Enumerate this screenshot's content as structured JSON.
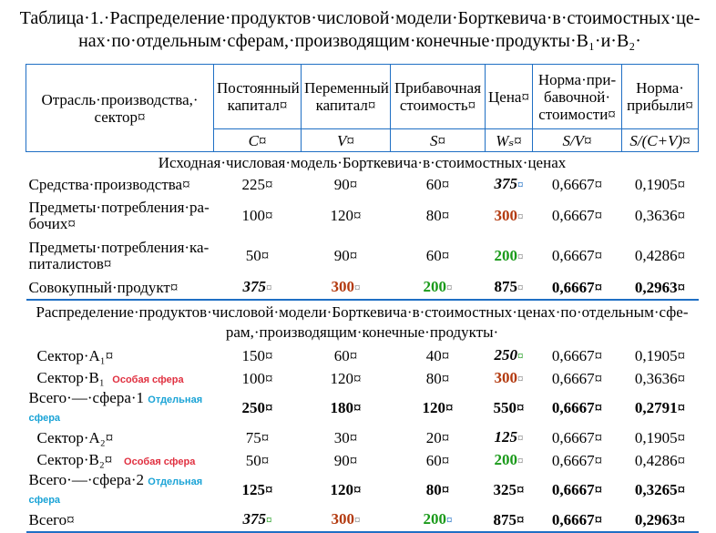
{
  "caption": {
    "line1": "Таблица·1.·Распределение·продуктов·числовой·модели·Борткевича·в·стоимостных·це-",
    "line2": "нах·по·отдельным·сферам,·производящим·конечные·продукты·B₁·и·B₂·"
  },
  "header": {
    "col1": "Отрасль·производства,· сектор¤",
    "col2": "Постоянный капитал¤",
    "col3": "Переменный капитал¤",
    "col4": "Прибавочная стоимость¤",
    "col5": "Цена¤",
    "col6": "Норма·при- бавочной· стоимости¤",
    "col7": "Норма· прибыли¤",
    "sym2": "C¤",
    "sym3": "V¤",
    "sym4": "S¤",
    "sym5": "Wₛ¤",
    "sym6": "S/V¤",
    "sym7": "S/(C+V)¤"
  },
  "section1": "Исходная·числовая·модель·Борткевича·в·стоимостных·ценах",
  "section2_line1": "Распределение·продуктов·числовой·модели·Борткевича·в·стоимостных·ценах·по·отдельным·сфе-",
  "section2_line2": "рам,·производящим·конечные·продукты·",
  "rows1": [
    {
      "name": "Средства·производства¤",
      "c": "225¤",
      "v": "90¤",
      "s": "60¤",
      "w": "375",
      "wm": "¤",
      "sv": "0,6667¤",
      "p": "0,1905¤"
    },
    {
      "name": "Предметы·потребления·ра- бочих¤",
      "c": "100¤",
      "v": "120¤",
      "s": "80¤",
      "w": "300",
      "wm": "¤",
      "sv": "0,6667¤",
      "p": "0,3636¤"
    },
    {
      "name": "Предметы·потребления·ка- питалистов¤",
      "c": "50¤",
      "v": "90¤",
      "s": "60¤",
      "w": "200",
      "wm": "¤",
      "sv": "0,6667¤",
      "p": "0,4286¤"
    },
    {
      "name": "Совокупный·продукт¤",
      "c": "375",
      "cm": "¤",
      "v": "300",
      "vm": "¤",
      "s": "200",
      "sm": "¤",
      "w": "875",
      "wm": "¤",
      "sv": "0,6667¤",
      "p": "0,2963¤"
    }
  ],
  "rows2": [
    {
      "name": "Сектор·A₁¤",
      "c": "150¤",
      "v": "60¤",
      "s": "40¤",
      "w": "250",
      "wm": "¤",
      "sv": "0,6667¤",
      "p": "0,1905¤"
    },
    {
      "name": "Сектор·B₁",
      "label": "Особая сфера",
      "c": "100¤",
      "v": "120¤",
      "s": "80¤",
      "w": "300",
      "wm": "¤",
      "sv": "0,6667¤",
      "p": "0,3636¤"
    },
    {
      "name": "Всего·—·сфера·1",
      "label": "Отдельная сфера",
      "c": "250¤",
      "v": "180¤",
      "s": "120¤",
      "w": "550¤",
      "sv": "0,6667¤",
      "p": "0,2791¤"
    },
    {
      "name": "Сектор·A₂¤",
      "c": "75¤",
      "v": "30¤",
      "s": "20¤",
      "w": "125",
      "wm": "¤",
      "sv": "0,6667¤",
      "p": "0,1905¤"
    },
    {
      "name": "Сектор·B₂¤",
      "label": "Особая сфера",
      "c": "50¤",
      "v": "90¤",
      "s": "60¤",
      "w": "200",
      "wm": "¤",
      "sv": "0,6667¤",
      "p": "0,4286¤"
    },
    {
      "name": "Всего·—·сфера·2",
      "label": "Отдельная сфера",
      "c": "125¤",
      "v": "120¤",
      "s": "80¤",
      "w": "325¤",
      "sv": "0,6667¤",
      "p": "0,3265¤"
    },
    {
      "name": "Всего¤",
      "c": "375",
      "cm": "¤",
      "v": "300",
      "vm": "¤",
      "s": "200",
      "sm": "¤",
      "w": "875¤",
      "sv": "0,6667¤",
      "p": "0,2963¤"
    }
  ]
}
